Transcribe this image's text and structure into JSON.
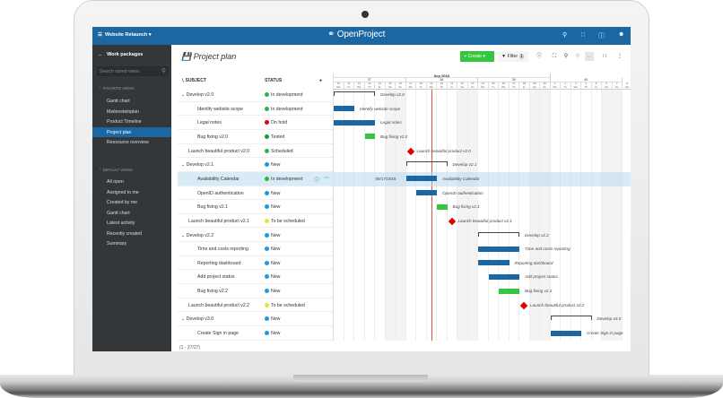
{
  "app": {
    "project": "Website Relaunch",
    "logo": "OpenProject",
    "icons": [
      "menu-icon",
      "search-icon",
      "grid-icon",
      "help-icon",
      "user-icon"
    ]
  },
  "sidebar": {
    "title": "Work packages",
    "search_placeholder": "Search saved views",
    "favorite_label": "FAVORITE VIEWS",
    "favorites": [
      "Gantt chart",
      "Meilensteinplan",
      "Product Timeline",
      "Project plan",
      "Ressource overview"
    ],
    "active": "Project plan",
    "default_label": "DEFAULT VIEWS",
    "defaults": [
      "All open",
      "Assigned to me",
      "Created by me",
      "Gantt chart",
      "Latest activity",
      "Recently created",
      "Summary"
    ]
  },
  "main": {
    "title": "Project plan",
    "create_label": "+ Create",
    "filter_label": "Filter",
    "filter_count": "1",
    "columns": {
      "subject": "SUBJECT",
      "status": "STATUS"
    },
    "footer": "(1 - 27/27)",
    "hover_date": "09/17/2018"
  },
  "colors": {
    "primary": "#1a67a3",
    "create": "#35c53f",
    "bar": "#1a67a3",
    "bar_done": "#35c53f",
    "milestone": "#e00000",
    "today": "#e05050"
  },
  "status_colors": {
    "In development": "#35b53f",
    "On hold": "#e00000",
    "Tested": "#1a9a30",
    "Scheduled": "#35b53f",
    "New": "#1a9ad6",
    "To be scheduled": "#e6e632"
  },
  "gantt": {
    "month": "Sep 2018",
    "weeks": [
      "37",
      "38",
      "39",
      "40"
    ],
    "today": "2018-09-19",
    "start": "2018-09-10",
    "days": 29
  },
  "rows": [
    {
      "subject": "Develop v2.0",
      "level": 0,
      "group": true,
      "status": "In development",
      "type": "bracket",
      "start": "2018-09-10",
      "end": "2018-09-13"
    },
    {
      "subject": "Identify website scope",
      "level": 1,
      "status": "In development",
      "type": "bar",
      "start": "2018-09-10",
      "end": "2018-09-11"
    },
    {
      "subject": "Legal notes",
      "level": 1,
      "status": "On hold",
      "type": "bar",
      "start": "2018-09-10",
      "end": "2018-09-13"
    },
    {
      "subject": "Bug fixing v2.0",
      "level": 1,
      "status": "Tested",
      "type": "done",
      "start": "2018-09-13",
      "end": "2018-09-13"
    },
    {
      "subject": "Launch beautiful product v2.0",
      "level": 0,
      "status": "Scheduled",
      "type": "milestone",
      "start": "2018-09-17",
      "end": "2018-09-17"
    },
    {
      "subject": "Develop v2.1",
      "level": 0,
      "group": true,
      "status": "New",
      "type": "bracket",
      "start": "2018-09-17",
      "end": "2018-09-20"
    },
    {
      "subject": "Availability Calendar",
      "level": 1,
      "status": "In development",
      "type": "bar",
      "start": "2018-09-17",
      "end": "2018-09-19",
      "selected": true
    },
    {
      "subject": "OpenID authentication",
      "level": 1,
      "status": "New",
      "type": "bar",
      "start": "2018-09-18",
      "end": "2018-09-19"
    },
    {
      "subject": "Bug fixing v2.1",
      "level": 1,
      "status": "New",
      "type": "done",
      "start": "2018-09-20",
      "end": "2018-09-20"
    },
    {
      "subject": "Launch beautiful product v2.1",
      "level": 0,
      "status": "To be scheduled",
      "type": "milestone",
      "start": "2018-09-21",
      "end": "2018-09-21"
    },
    {
      "subject": "Develop v2.2",
      "level": 0,
      "group": true,
      "status": "New",
      "type": "bracket",
      "start": "2018-09-24",
      "end": "2018-09-27"
    },
    {
      "subject": "Time and costs reporting",
      "level": 1,
      "status": "New",
      "type": "bar",
      "start": "2018-09-24",
      "end": "2018-09-27"
    },
    {
      "subject": "Reporting dashboard",
      "level": 1,
      "status": "New",
      "type": "bar",
      "start": "2018-09-24",
      "end": "2018-09-26"
    },
    {
      "subject": "Add project status",
      "level": 1,
      "status": "New",
      "type": "bar",
      "start": "2018-09-25",
      "end": "2018-09-27"
    },
    {
      "subject": "Bug fixing v2.2",
      "level": 1,
      "status": "New",
      "type": "done",
      "start": "2018-09-26",
      "end": "2018-09-27"
    },
    {
      "subject": "Launch beautiful product v2.2",
      "level": 0,
      "status": "To be scheduled",
      "type": "milestone",
      "start": "2018-09-28",
      "end": "2018-09-28"
    },
    {
      "subject": "Develop v3.0",
      "level": 0,
      "group": true,
      "status": "New",
      "type": "bracket",
      "start": "2018-10-01",
      "end": "2018-10-04"
    },
    {
      "subject": "Create Sign in page",
      "level": 1,
      "status": "New",
      "type": "bar",
      "start": "2018-10-01",
      "end": "2018-10-03"
    }
  ]
}
